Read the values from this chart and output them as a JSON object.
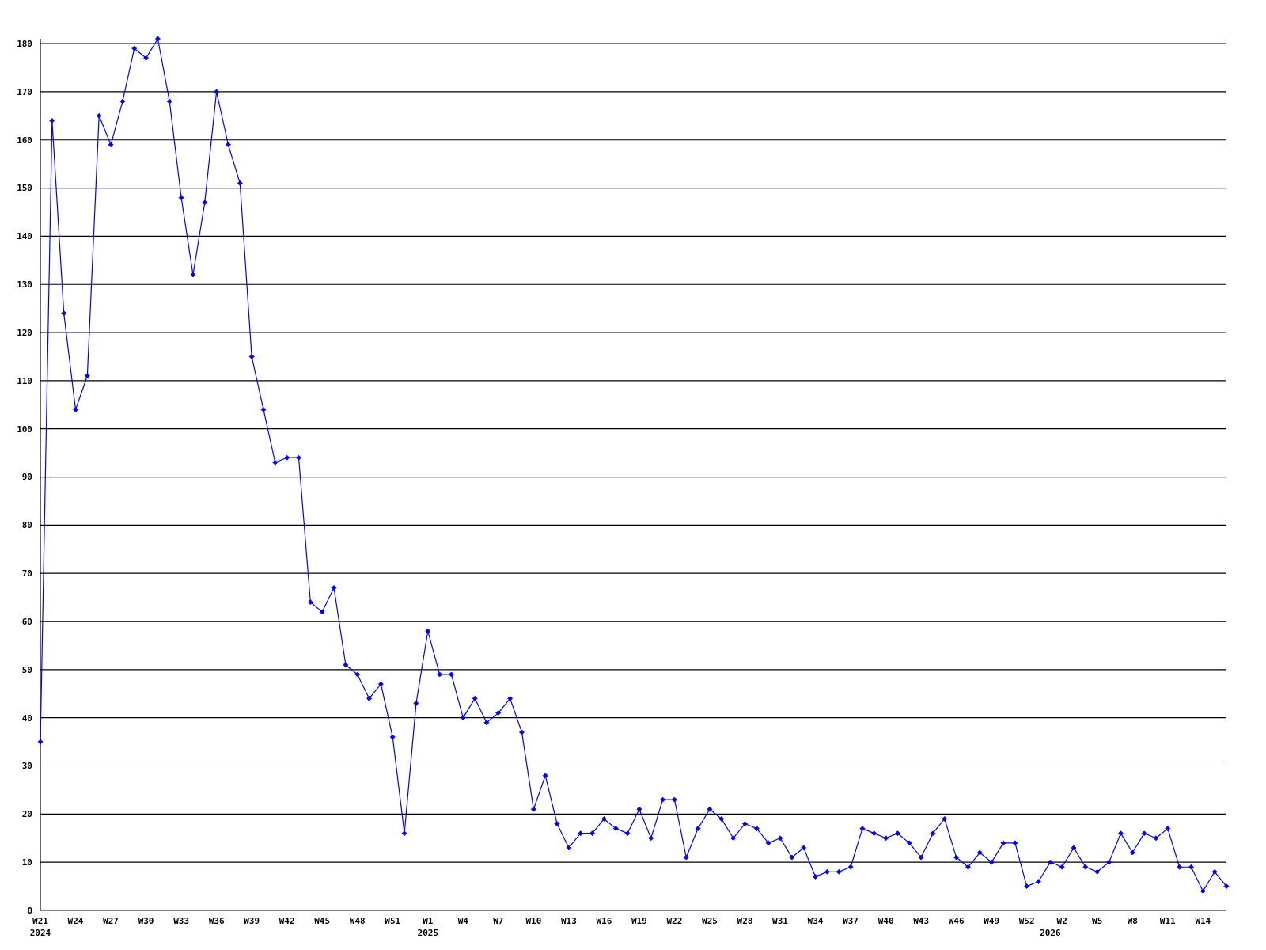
{
  "chart_data": {
    "type": "line",
    "categories": [
      "W21\n2024",
      null,
      null,
      "W24",
      null,
      null,
      "W27",
      null,
      null,
      "W30",
      null,
      null,
      "W33",
      null,
      null,
      "W36",
      null,
      null,
      "W39",
      null,
      null,
      "W42",
      null,
      null,
      "W45",
      null,
      null,
      "W48",
      null,
      null,
      "W51",
      null,
      null,
      "W1\n2025",
      null,
      null,
      "W4",
      null,
      null,
      "W7",
      null,
      null,
      "W10",
      null,
      null,
      "W13",
      null,
      null,
      "W16",
      null,
      null,
      "W19",
      null,
      null,
      "W22",
      null,
      null,
      "W25",
      null,
      null,
      "W28",
      null,
      null,
      "W31",
      null,
      null,
      "W34",
      null,
      null,
      "W37",
      null,
      null,
      "W40",
      null,
      null,
      "W43",
      null,
      null,
      "W46",
      null,
      null,
      "W49",
      null,
      null,
      "W52",
      null,
      "\n2026",
      "W2",
      null,
      null,
      "W5",
      null,
      null,
      "W8",
      null,
      null,
      "W11",
      null,
      null,
      "W14",
      null,
      null
    ],
    "series": [
      {
        "color": "#0000ff",
        "values": [
          35,
          164,
          124,
          104,
          111,
          165,
          159,
          168,
          179,
          177,
          181,
          168,
          148,
          132,
          147,
          170,
          159,
          151,
          115,
          104,
          93,
          94,
          94,
          64,
          62,
          67,
          51,
          49,
          44,
          47,
          36,
          16,
          43,
          58,
          49,
          49,
          40,
          44,
          39,
          41,
          44,
          37,
          21,
          28,
          18,
          13,
          16,
          16,
          19,
          17,
          16,
          21,
          15,
          23,
          23,
          11,
          17,
          21,
          19,
          15,
          18,
          17,
          14,
          15,
          11,
          13,
          7,
          8,
          8,
          9,
          17,
          16,
          15,
          16,
          14,
          11,
          16,
          19,
          11,
          9,
          12,
          10,
          14,
          14,
          5,
          6,
          10,
          9,
          13,
          9,
          8,
          10,
          16,
          12,
          16,
          15,
          17,
          9,
          9,
          4,
          8,
          5
        ]
      }
    ],
    "ylim": [
      0,
      181
    ],
    "yticks": [
      0,
      10,
      20,
      30,
      40,
      50,
      60,
      70,
      80,
      90,
      100,
      110,
      120,
      130,
      140,
      150,
      160,
      170,
      180
    ],
    "grid": "y",
    "marker": "diamond",
    "line_style": "solid"
  }
}
